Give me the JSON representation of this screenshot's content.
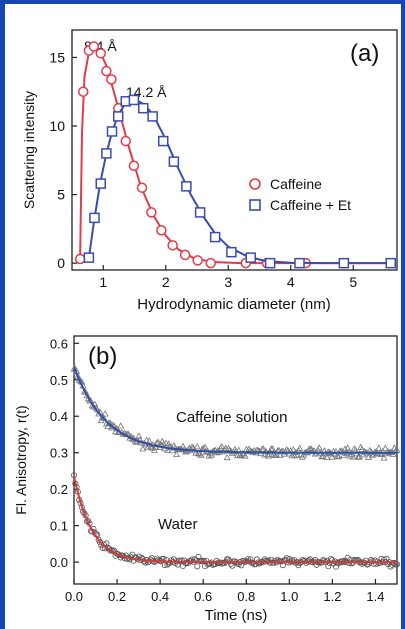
{
  "chart_data": [
    {
      "type": "scatter",
      "panel_label": "(a)",
      "xlabel": "Hydrodynamic diameter (nm)",
      "ylabel": "Scattering intensity",
      "xlim": [
        0.5,
        5.7
      ],
      "ylim": [
        -0.5,
        17
      ],
      "xticks": [
        1,
        2,
        3,
        4,
        5
      ],
      "xtick_labels": [
        "1",
        "2",
        "3",
        "4",
        "5"
      ],
      "yticks": [
        0,
        5,
        10,
        15
      ],
      "ytick_labels": [
        "0",
        "5",
        "10",
        "15"
      ],
      "grid": false,
      "legend_position": "right",
      "annotations": [
        {
          "text": "8.4 Å",
          "x": 0.62,
          "y": 16.3
        },
        {
          "text": "14.2 Å",
          "x": 1.35,
          "y": 12.6
        }
      ],
      "series": [
        {
          "name": "Caffeine",
          "color": "#e23b4b",
          "marker": "circle",
          "points": [
            {
              "x": 0.63,
              "y": 0.3
            },
            {
              "x": 0.68,
              "y": 12.5
            },
            {
              "x": 0.77,
              "y": 15.5
            },
            {
              "x": 0.85,
              "y": 15.8
            },
            {
              "x": 0.96,
              "y": 15.3
            },
            {
              "x": 1.05,
              "y": 14.0
            },
            {
              "x": 1.13,
              "y": 13.4
            },
            {
              "x": 1.24,
              "y": 11.3
            },
            {
              "x": 1.36,
              "y": 8.9
            },
            {
              "x": 1.49,
              "y": 7.1
            },
            {
              "x": 1.62,
              "y": 5.5
            },
            {
              "x": 1.77,
              "y": 3.7
            },
            {
              "x": 1.93,
              "y": 2.4
            },
            {
              "x": 2.11,
              "y": 1.3
            },
            {
              "x": 2.31,
              "y": 0.6
            },
            {
              "x": 2.51,
              "y": 0.2
            },
            {
              "x": 2.72,
              "y": 0.0
            },
            {
              "x": 3.28,
              "y": 0.0
            },
            {
              "x": 3.62,
              "y": 0.0
            },
            {
              "x": 4.24,
              "y": 0.0
            },
            {
              "x": 4.85,
              "y": 0.0
            },
            {
              "x": 5.6,
              "y": 0.0
            }
          ],
          "fit": [
            {
              "x": 0.63,
              "y": 0.3
            },
            {
              "x": 0.66,
              "y": 9.5
            },
            {
              "x": 0.7,
              "y": 13.6
            },
            {
              "x": 0.78,
              "y": 15.6
            },
            {
              "x": 0.86,
              "y": 15.8
            },
            {
              "x": 0.95,
              "y": 15.4
            },
            {
              "x": 1.05,
              "y": 14.4
            },
            {
              "x": 1.2,
              "y": 12.0
            },
            {
              "x": 1.4,
              "y": 8.6
            },
            {
              "x": 1.6,
              "y": 5.6
            },
            {
              "x": 1.8,
              "y": 3.5
            },
            {
              "x": 2.0,
              "y": 2.0
            },
            {
              "x": 2.2,
              "y": 1.0
            },
            {
              "x": 2.45,
              "y": 0.35
            },
            {
              "x": 2.75,
              "y": 0.08
            },
            {
              "x": 3.2,
              "y": 0.0
            },
            {
              "x": 5.6,
              "y": 0.0
            }
          ]
        },
        {
          "name": "Caffeine + Et",
          "color": "#3a4cb0",
          "marker": "square",
          "points": [
            {
              "x": 0.77,
              "y": 0.4
            },
            {
              "x": 0.86,
              "y": 3.3
            },
            {
              "x": 0.96,
              "y": 5.8
            },
            {
              "x": 1.05,
              "y": 8.0
            },
            {
              "x": 1.14,
              "y": 9.6
            },
            {
              "x": 1.24,
              "y": 10.7
            },
            {
              "x": 1.36,
              "y": 11.8
            },
            {
              "x": 1.49,
              "y": 11.9
            },
            {
              "x": 1.64,
              "y": 11.3
            },
            {
              "x": 1.79,
              "y": 10.7
            },
            {
              "x": 1.96,
              "y": 8.9
            },
            {
              "x": 2.13,
              "y": 7.4
            },
            {
              "x": 2.33,
              "y": 5.6
            },
            {
              "x": 2.55,
              "y": 3.7
            },
            {
              "x": 2.79,
              "y": 1.9
            },
            {
              "x": 3.05,
              "y": 0.8
            },
            {
              "x": 3.36,
              "y": 0.4
            },
            {
              "x": 3.67,
              "y": 0.0
            },
            {
              "x": 4.14,
              "y": 0.0
            },
            {
              "x": 4.85,
              "y": 0.0
            },
            {
              "x": 5.6,
              "y": 0.0
            }
          ],
          "fit": [
            {
              "x": 0.77,
              "y": 0.4
            },
            {
              "x": 0.85,
              "y": 3.0
            },
            {
              "x": 0.95,
              "y": 5.8
            },
            {
              "x": 1.05,
              "y": 8.0
            },
            {
              "x": 1.15,
              "y": 9.7
            },
            {
              "x": 1.25,
              "y": 10.9
            },
            {
              "x": 1.35,
              "y": 11.6
            },
            {
              "x": 1.5,
              "y": 11.95
            },
            {
              "x": 1.65,
              "y": 11.6
            },
            {
              "x": 1.8,
              "y": 10.8
            },
            {
              "x": 2.0,
              "y": 9.0
            },
            {
              "x": 2.2,
              "y": 6.9
            },
            {
              "x": 2.4,
              "y": 5.0
            },
            {
              "x": 2.6,
              "y": 3.4
            },
            {
              "x": 2.8,
              "y": 2.1
            },
            {
              "x": 3.0,
              "y": 1.2
            },
            {
              "x": 3.3,
              "y": 0.5
            },
            {
              "x": 3.6,
              "y": 0.15
            },
            {
              "x": 4.0,
              "y": 0.03
            },
            {
              "x": 4.5,
              "y": 0.0
            },
            {
              "x": 5.6,
              "y": 0.0
            }
          ]
        }
      ]
    },
    {
      "type": "scatter",
      "panel_label": "(b)",
      "xlabel": "Time (ns)",
      "ylabel": "Fl. Anisotropy, r(t)",
      "xlim": [
        0,
        1.5
      ],
      "ylim": [
        -0.06,
        0.62
      ],
      "xticks": [
        0.0,
        0.2,
        0.4,
        0.6,
        0.8,
        1.0,
        1.2,
        1.4
      ],
      "xtick_labels": [
        "0.0",
        "0.2",
        "0.4",
        "0.6",
        "0.8",
        "1.0",
        "1.2",
        "1.4"
      ],
      "yticks": [
        0.0,
        0.1,
        0.2,
        0.3,
        0.4,
        0.5,
        0.6
      ],
      "ytick_labels": [
        "0.0",
        "0.1",
        "0.2",
        "0.3",
        "0.4",
        "0.5",
        "0.6"
      ],
      "grid": false,
      "annotations": [
        {
          "text": "Caffeine solution",
          "x": 0.42,
          "y": 0.375
        },
        {
          "text": "Water",
          "x": 0.38,
          "y": 0.1
        }
      ],
      "series": [
        {
          "label": "Caffeine solution",
          "marker": "triangle",
          "marker_color": "#777777",
          "fit_color": "#2f4fa8",
          "start_value": 0.535,
          "plateau": 0.3,
          "decay_time_ns": 0.15,
          "noise": 0.012
        },
        {
          "label": "Water",
          "marker": "circle",
          "marker_color": "#555555",
          "fit_color": "#d63a3a",
          "start_value": 0.235,
          "plateau": 0.0,
          "decay_time_ns": 0.085,
          "noise": 0.01
        }
      ]
    }
  ]
}
